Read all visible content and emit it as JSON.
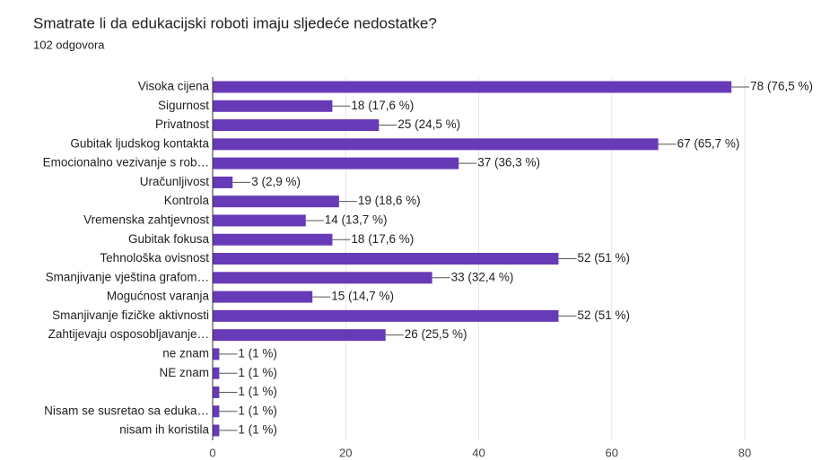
{
  "chart_data": {
    "type": "barh",
    "title": "Smatrate li da edukacijski roboti imaju sljedeće nedostatke?",
    "subtitle": "102 odgovora",
    "categories": [
      "Visoka cijena",
      "Sigurnost",
      "Privatnost",
      "Gubitak ljudskog kontakta",
      "Emocionalno vezivanje s rob…",
      "Uračunljivost",
      "Kontrola",
      "Vremenska zahtjevnost",
      "Gubitak fokusa",
      "Tehnološka ovisnost",
      "Smanjivanje vještina grafom…",
      "Mogućnost varanja",
      "Smanjivanje fizičke aktivnosti",
      "Zahtijevaju osposobljavanje…",
      "ne znam",
      "NE znam",
      null,
      "Nisam se susretao sa eduka…",
      "nisam ih koristila"
    ],
    "values": [
      78,
      18,
      25,
      67,
      37,
      3,
      19,
      14,
      18,
      52,
      33,
      15,
      52,
      26,
      1,
      1,
      1,
      1,
      1
    ],
    "value_labels": [
      "78 (76,5 %)",
      "18 (17,6 %)",
      "25 (24,5 %)",
      "67 (65,7 %)",
      "37 (36,3 %)",
      "3 (2,9 %)",
      "19 (18,6 %)",
      "14 (13,7 %)",
      "18 (17,6 %)",
      "52 (51 %)",
      "33 (32,4 %)",
      "15 (14,7 %)",
      "52 (51 %)",
      "26 (25,5 %)",
      "1 (1 %)",
      "1 (1 %)",
      "1 (1 %)",
      "1 (1 %)",
      "1 (1 %)"
    ],
    "color": "#673ab7",
    "xlim": [
      0,
      80
    ],
    "xticks": [
      0,
      20,
      40,
      60,
      80
    ],
    "grid": true
  }
}
